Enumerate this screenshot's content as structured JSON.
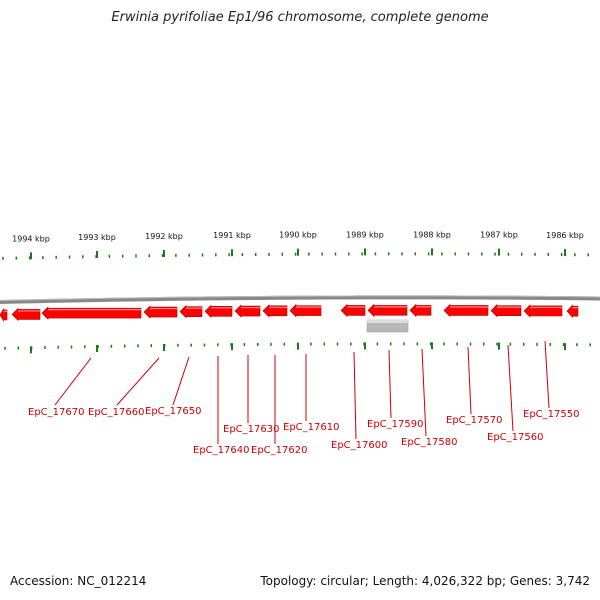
{
  "title": "Erwinia pyrifoliae Ep1/96 chromosome, complete genome",
  "accession": "Accession: NC_012214",
  "summary": "Topology: circular; Length: 4,026,322 bp; Genes: 3,742",
  "colors": {
    "gene": "#ff0000",
    "tick": "#1a7a1a",
    "backbone": "#888888",
    "label": "#cc0000",
    "grey_feature": "#b8b8b8"
  },
  "kbp_labels": [
    "1994 kbp",
    "1993 kbp",
    "1992 kbp",
    "1991 kbp",
    "1990 kbp",
    "1989 kbp",
    "1988 kbp",
    "1987 kbp",
    "1986 kbp"
  ],
  "gene_labels": [
    "EpC_17670",
    "EpC_17660",
    "EpC_17650",
    "EpC_17640",
    "EpC_17630",
    "EpC_17620",
    "EpC_17610",
    "EpC_17600",
    "EpC_17590",
    "EpC_17580",
    "EpC_17570",
    "EpC_17560",
    "EpC_17550"
  ]
}
